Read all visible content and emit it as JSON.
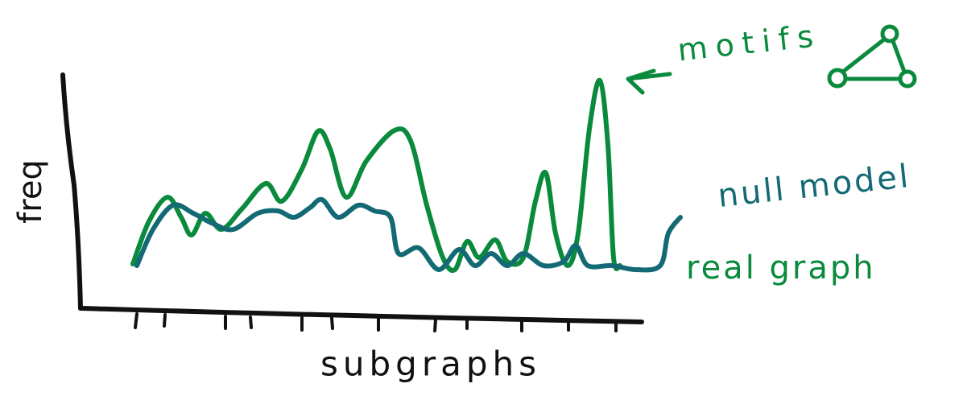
{
  "chart_data": {
    "type": "line",
    "x_label": "subgraphs",
    "y_label": "freq",
    "annotation": "motifs",
    "xlim": [
      0,
      680
    ],
    "ylim": [
      0,
      300
    ],
    "series": [
      {
        "name": "real graph",
        "color": "#0a8a3c",
        "x": [
          0,
          20,
          43,
          60,
          73,
          90,
          110,
          135,
          165,
          185,
          210,
          230,
          245,
          265,
          290,
          325,
          345,
          365,
          385,
          400,
          415,
          430,
          450,
          465,
          485,
          500,
          513,
          525,
          540,
          553,
          567,
          580,
          590,
          597,
          605
        ],
        "values": [
          57,
          110,
          140,
          115,
          93,
          120,
          100,
          125,
          157,
          135,
          175,
          222,
          200,
          140,
          185,
          223,
          210,
          130,
          65,
          50,
          85,
          65,
          87,
          60,
          65,
          135,
          170,
          95,
          55,
          95,
          225,
          285,
          205,
          65,
          55
        ]
      },
      {
        "name": "null model",
        "color": "#136a74",
        "x": [
          5,
          25,
          50,
          75,
          100,
          125,
          155,
          180,
          200,
          220,
          235,
          255,
          280,
          300,
          320,
          330,
          355,
          380,
          405,
          425,
          445,
          465,
          485,
          510,
          535,
          550,
          565,
          595,
          625,
          655,
          665,
          680
        ],
        "values": [
          55,
          100,
          130,
          120,
          107,
          100,
          120,
          123,
          115,
          127,
          137,
          115,
          130,
          123,
          115,
          70,
          77,
          50,
          75,
          55,
          70,
          55,
          70,
          55,
          60,
          80,
          55,
          55,
          50,
          55,
          95,
          115
        ]
      }
    ]
  }
}
